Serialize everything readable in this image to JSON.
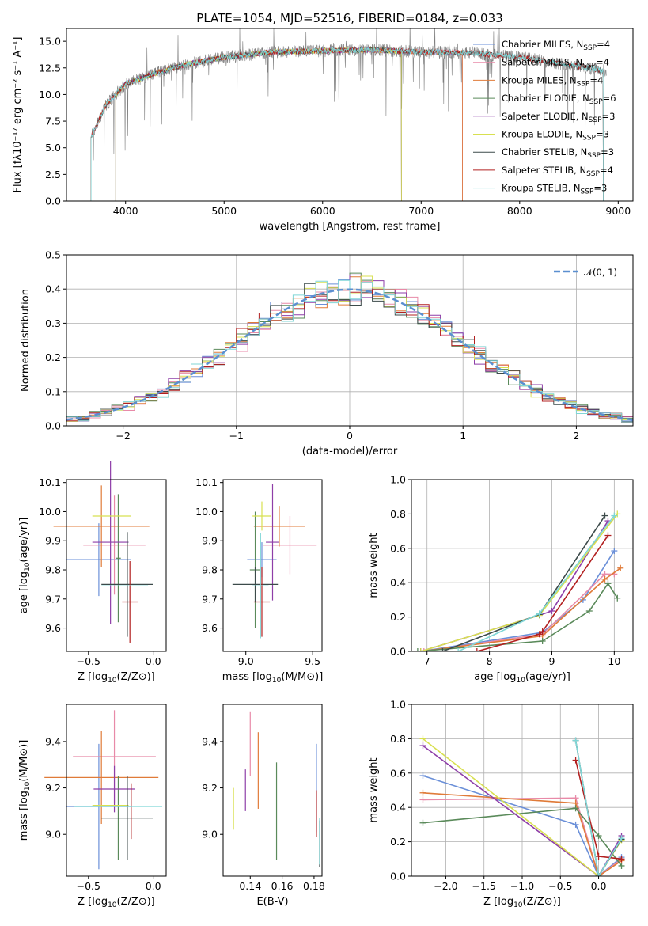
{
  "chart_data": [
    {
      "id": "spectrum",
      "type": "line",
      "title": "PLATE=1054, MJD=52516, FIBERID=0184, z=0.033",
      "xlabel": "wavelength [Angstrom, rest frame]",
      "ylabel": "Flux [fλ10⁻¹⁷ erg cm⁻² s⁻¹ A⁻¹]",
      "xlim": [
        3400,
        9150
      ],
      "ylim": [
        0,
        16.2
      ],
      "xticks": [
        4000,
        5000,
        6000,
        7000,
        8000,
        9000
      ],
      "yticks": [
        0.0,
        2.5,
        5.0,
        7.5,
        10.0,
        12.5,
        15.0
      ],
      "legend_position": "top-right",
      "data_series": {
        "name": "data",
        "color": "#808080",
        "x_range": [
          3650,
          8880
        ]
      },
      "continuum": {
        "x": [
          3650,
          3800,
          4000,
          4300,
          4600,
          5000,
          5500,
          6000,
          6500,
          7000,
          7500,
          8000,
          8500,
          8880
        ],
        "y": [
          6.0,
          9.0,
          11.0,
          12.0,
          12.8,
          13.5,
          14.0,
          14.1,
          14.2,
          14.0,
          13.9,
          13.5,
          12.8,
          12.2
        ]
      },
      "series": [
        {
          "name": "Chabrier MILES, N_SSP=4",
          "label_prefix": "Chabrier MILES, N",
          "label_sub": "SSP",
          "label_suffix": "=4",
          "color": "#6a8fd8",
          "x_range": [
            3650,
            7420
          ]
        },
        {
          "name": "Salpeter MILES, N_SSP=4",
          "label_prefix": "Salpeter MILES, N",
          "label_sub": "SSP",
          "label_suffix": "=4",
          "color": "#e88aa8",
          "x_range": [
            3650,
            7420
          ]
        },
        {
          "name": "Kroupa MILES, N_SSP=4",
          "label_prefix": "Kroupa MILES, N",
          "label_sub": "SSP",
          "label_suffix": "=4",
          "color": "#e07b39",
          "x_range": [
            3650,
            7420
          ]
        },
        {
          "name": "Chabrier ELODIE, N_SSP=6",
          "label_prefix": "Chabrier ELODIE, N",
          "label_sub": "SSP",
          "label_suffix": "=6",
          "color": "#5a8a5a",
          "x_range": [
            3900,
            6800
          ]
        },
        {
          "name": "Salpeter ELODIE, N_SSP=3",
          "label_prefix": "Salpeter ELODIE, N",
          "label_sub": "SSP",
          "label_suffix": "=3",
          "color": "#8e3ea8",
          "x_range": [
            3900,
            6800
          ]
        },
        {
          "name": "Kroupa ELODIE, N_SSP=3",
          "label_prefix": "Kroupa ELODIE, N",
          "label_sub": "SSP",
          "label_suffix": "=3",
          "color": "#d8e050",
          "x_range": [
            3900,
            6800
          ]
        },
        {
          "name": "Chabrier STELIB, N_SSP=3",
          "label_prefix": "Chabrier STELIB, N",
          "label_sub": "SSP",
          "label_suffix": "=3",
          "color": "#3c4a4a",
          "x_range": [
            3650,
            8850
          ]
        },
        {
          "name": "Salpeter STELIB, N_SSP=4",
          "label_prefix": "Salpeter STELIB, N",
          "label_sub": "SSP",
          "label_suffix": "=4",
          "color": "#b22020",
          "x_range": [
            3650,
            8850
          ]
        },
        {
          "name": "Kroupa STELIB, N_SSP=3",
          "label_prefix": "Kroupa STELIB, N",
          "label_sub": "SSP",
          "label_suffix": "=3",
          "color": "#7fd6d6",
          "x_range": [
            3650,
            8850
          ]
        }
      ]
    },
    {
      "id": "residuals",
      "type": "histogram",
      "xlabel": "(data-model)/error",
      "ylabel": "Normed distribution",
      "xlim": [
        -2.5,
        2.5
      ],
      "ylim": [
        0,
        0.5
      ],
      "xticks": [
        -2,
        -1,
        0,
        1,
        2
      ],
      "yticks": [
        0.0,
        0.1,
        0.2,
        0.3,
        0.4,
        0.5
      ],
      "bin_width": 0.1,
      "legend_position": "top-right",
      "reference_curve": {
        "label": "𝒩(0, 1)",
        "mean": 0,
        "sigma": 1,
        "color": "#5b8fd0",
        "dash": true
      }
    },
    {
      "id": "age-vs-Z",
      "type": "errorbar",
      "xlabel_prefix": "Z [log",
      "xlabel_sub": "10",
      "xlabel_suffix": "(Z/Z⊙)]",
      "ylabel_prefix": "age  [log",
      "ylabel_sub": "10",
      "ylabel_suffix": "(age/yr)]",
      "xlim": [
        -0.67,
        0.1
      ],
      "ylim": [
        9.52,
        10.11
      ],
      "xticks": [
        -0.5,
        0.0
      ],
      "yticks": [
        9.6,
        9.7,
        9.8,
        9.9,
        10.0,
        10.1
      ],
      "points": [
        {
          "x": -0.42,
          "xerr": 0.25,
          "y": 9.835,
          "yerr": 0.125,
          "color": "#6a8fd8"
        },
        {
          "x": -0.3,
          "xerr": 0.24,
          "y": 9.885,
          "yerr": 0.17,
          "color": "#e88aa8"
        },
        {
          "x": -0.4,
          "xerr": 0.37,
          "y": 9.95,
          "yerr": 0.14,
          "color": "#e07b39"
        },
        {
          "x": -0.27,
          "xerr": 0.02,
          "y": 9.84,
          "yerr": 0.22,
          "color": "#5a8a5a"
        },
        {
          "x": -0.33,
          "xerr": 0.14,
          "y": 9.895,
          "yerr": 0.28,
          "color": "#8e3ea8"
        },
        {
          "x": -0.32,
          "xerr": 0.15,
          "y": 9.985,
          "yerr": 0.0,
          "color": "#d8e050"
        },
        {
          "x": -0.2,
          "xerr": 0.2,
          "y": 9.75,
          "yerr": 0.18,
          "color": "#3c4a4a"
        },
        {
          "x": -0.18,
          "xerr": 0.06,
          "y": 9.69,
          "yerr": 0.14,
          "color": "#b22020"
        },
        {
          "x": -0.22,
          "xerr": 0.18,
          "y": 9.745,
          "yerr": 0.0,
          "color": "#7fd6d6"
        }
      ]
    },
    {
      "id": "age-vs-mass",
      "type": "errorbar",
      "xlabel_prefix": "mass [log",
      "xlabel_sub": "10",
      "xlabel_suffix": "(M/M⊙)]",
      "xlim": [
        8.83,
        9.57
      ],
      "ylim": [
        9.52,
        10.11
      ],
      "xticks": [
        9.0,
        9.5
      ],
      "yticks": [
        9.6,
        9.7,
        9.8,
        9.9,
        10.0,
        10.1
      ],
      "points": [
        {
          "x": 9.12,
          "xerr": 0.11,
          "y": 9.835,
          "yerr": 0.06,
          "color": "#6a8fd8"
        },
        {
          "x": 9.33,
          "xerr": 0.2,
          "y": 9.885,
          "yerr": 0.1,
          "color": "#e88aa8"
        },
        {
          "x": 9.25,
          "xerr": 0.19,
          "y": 9.95,
          "yerr": 0.07,
          "color": "#e07b39"
        },
        {
          "x": 9.07,
          "xerr": 0.04,
          "y": 9.8,
          "yerr": 0.2,
          "color": "#5a8a5a"
        },
        {
          "x": 9.2,
          "xerr": 0.05,
          "y": 9.895,
          "yerr": 0.2,
          "color": "#8e3ea8"
        },
        {
          "x": 9.12,
          "xerr": 0.07,
          "y": 9.985,
          "yerr": 0.05,
          "color": "#d8e050"
        },
        {
          "x": 9.07,
          "xerr": 0.17,
          "y": 9.75,
          "yerr": 0.06,
          "color": "#3c4a4a"
        },
        {
          "x": 9.12,
          "xerr": 0.06,
          "y": 9.69,
          "yerr": 0.12,
          "color": "#b22020"
        },
        {
          "x": 9.11,
          "xerr": 0.06,
          "y": 9.745,
          "yerr": 0.18,
          "color": "#7fd6d6"
        }
      ]
    },
    {
      "id": "weight-vs-age",
      "type": "line",
      "xlabel_prefix": "age  [log",
      "xlabel_sub": "10",
      "xlabel_suffix": "(age/yr)]",
      "ylabel": "mass weight",
      "xlim": [
        6.75,
        10.3
      ],
      "ylim": [
        0,
        1.0
      ],
      "xticks": [
        7,
        8,
        9,
        10
      ],
      "yticks": [
        0.0,
        0.2,
        0.4,
        0.6,
        0.8,
        1.0
      ],
      "series": [
        {
          "color": "#6a8fd8",
          "x": [
            6.9,
            8.85,
            9.5,
            10.0
          ],
          "y": [
            0.0,
            0.11,
            0.3,
            0.585
          ]
        },
        {
          "color": "#e88aa8",
          "x": [
            6.95,
            8.85,
            9.85,
            10.0
          ],
          "y": [
            0.0,
            0.1,
            0.45,
            0.45
          ]
        },
        {
          "color": "#e07b39",
          "x": [
            6.9,
            8.85,
            9.85,
            10.1
          ],
          "y": [
            0.0,
            0.09,
            0.42,
            0.485
          ]
        },
        {
          "color": "#5a8a5a",
          "x": [
            6.85,
            8.85,
            9.6,
            9.9,
            10.05
          ],
          "y": [
            0.0,
            0.06,
            0.235,
            0.395,
            0.31
          ]
        },
        {
          "color": "#8e3ea8",
          "x": [
            6.9,
            8.8,
            9.0,
            9.9
          ],
          "y": [
            0.0,
            0.21,
            0.235,
            0.76
          ]
        },
        {
          "color": "#d8e050",
          "x": [
            6.9,
            8.8,
            10.05
          ],
          "y": [
            0.0,
            0.21,
            0.8
          ]
        },
        {
          "color": "#3c4a4a",
          "x": [
            7.25,
            8.8,
            9.85
          ],
          "y": [
            0.0,
            0.215,
            0.79
          ]
        },
        {
          "color": "#b22020",
          "x": [
            7.8,
            8.8,
            8.85,
            9.9
          ],
          "y": [
            0.0,
            0.1,
            0.115,
            0.675
          ]
        },
        {
          "color": "#7fd6d6",
          "x": [
            7.5,
            8.8,
            10.0
          ],
          "y": [
            0.0,
            0.22,
            0.79
          ]
        }
      ]
    },
    {
      "id": "mass-vs-Z",
      "type": "errorbar",
      "xlabel_prefix": "Z [log",
      "xlabel_sub": "10",
      "xlabel_suffix": "(Z/Z⊙)]",
      "ylabel_prefix": "mass [log",
      "ylabel_sub": "10",
      "ylabel_suffix": "(M/M⊙)]",
      "xlim": [
        -0.67,
        0.1
      ],
      "ylim": [
        8.82,
        9.56
      ],
      "xticks": [
        -0.5,
        0.0
      ],
      "yticks": [
        9.0,
        9.2,
        9.4
      ],
      "points": [
        {
          "x": -0.42,
          "xerr": 0.25,
          "y": 9.12,
          "yerr": 0.27,
          "color": "#6a8fd8"
        },
        {
          "x": -0.3,
          "xerr": 0.32,
          "y": 9.335,
          "yerr": 0.2,
          "color": "#e88aa8"
        },
        {
          "x": -0.4,
          "xerr": 0.44,
          "y": 9.245,
          "yerr": 0.2,
          "color": "#e07b39"
        },
        {
          "x": -0.27,
          "xerr": 0.0,
          "y": 9.07,
          "yerr": 0.18,
          "color": "#5a8a5a"
        },
        {
          "x": -0.3,
          "xerr": 0.16,
          "y": 9.195,
          "yerr": 0.1,
          "color": "#8e3ea8"
        },
        {
          "x": -0.33,
          "xerr": 0.14,
          "y": 9.125,
          "yerr": 0.0,
          "color": "#d8e050"
        },
        {
          "x": -0.2,
          "xerr": 0.2,
          "y": 9.07,
          "yerr": 0.18,
          "color": "#3c4a4a"
        },
        {
          "x": -0.17,
          "xerr": 0.0,
          "y": 9.1,
          "yerr": 0.12,
          "color": "#b22020"
        },
        {
          "x": -0.27,
          "xerr": 0.34,
          "y": 9.12,
          "yerr": 0.0,
          "color": "#7fd6d6"
        }
      ]
    },
    {
      "id": "mass-vs-EBV",
      "type": "errorbar",
      "xlabel": "E(B-V)",
      "xlim": [
        0.123,
        0.185
      ],
      "ylim": [
        8.82,
        9.56
      ],
      "xticks": [
        0.14,
        0.16,
        0.18
      ],
      "yticks": [
        9.0,
        9.2,
        9.4
      ],
      "points": [
        {
          "x": 0.1815,
          "xerr": 0.0,
          "y": 9.2,
          "yerr": 0.19,
          "color": "#6a8fd8"
        },
        {
          "x": 0.14,
          "xerr": 0.0,
          "y": 9.39,
          "yerr": 0.14,
          "color": "#e88aa8"
        },
        {
          "x": 0.145,
          "xerr": 0.0,
          "y": 9.275,
          "yerr": 0.165,
          "color": "#e07b39"
        },
        {
          "x": 0.1565,
          "xerr": 0.0,
          "y": 9.1,
          "yerr": 0.21,
          "color": "#5a8a5a"
        },
        {
          "x": 0.137,
          "xerr": 0.0,
          "y": 9.19,
          "yerr": 0.09,
          "color": "#8e3ea8"
        },
        {
          "x": 0.1295,
          "xerr": 0.0,
          "y": 9.11,
          "yerr": 0.09,
          "color": "#d8e050"
        },
        {
          "x": 0.1835,
          "xerr": 0.0,
          "y": 8.96,
          "yerr": 0.1,
          "color": "#3c4a4a"
        },
        {
          "x": 0.1815,
          "xerr": 0.0,
          "y": 9.09,
          "yerr": 0.1,
          "color": "#b22020"
        },
        {
          "x": 0.1835,
          "xerr": 0.0,
          "y": 8.97,
          "yerr": 0.1,
          "color": "#7fd6d6"
        }
      ]
    },
    {
      "id": "weight-vs-Z",
      "type": "line",
      "xlabel_prefix": "Z [log",
      "xlabel_sub": "10",
      "xlabel_suffix": "(Z/Z⊙)]",
      "ylabel": "mass weight",
      "xlim": [
        -2.45,
        0.45
      ],
      "ylim": [
        0,
        1.0
      ],
      "xticks": [
        -2.0,
        -1.5,
        -1.0,
        -0.5,
        0.0
      ],
      "yticks": [
        0.0,
        0.2,
        0.4,
        0.6,
        0.8,
        1.0
      ],
      "series": [
        {
          "color": "#6a8fd8",
          "x": [
            -2.3,
            -0.3,
            0.0,
            0.3
          ],
          "y": [
            0.585,
            0.3,
            0.0,
            0.11
          ]
        },
        {
          "color": "#e88aa8",
          "x": [
            -2.3,
            -0.3,
            0.0,
            0.3
          ],
          "y": [
            0.445,
            0.455,
            0.0,
            0.1
          ]
        },
        {
          "color": "#e07b39",
          "x": [
            -2.3,
            -0.3,
            0.0,
            0.3
          ],
          "y": [
            0.485,
            0.425,
            0.0,
            0.09
          ]
        },
        {
          "color": "#5a8a5a",
          "x": [
            -2.3,
            -0.3,
            0.0,
            0.3
          ],
          "y": [
            0.31,
            0.395,
            0.235,
            0.06
          ]
        },
        {
          "color": "#8e3ea8",
          "x": [
            -2.3,
            0.0,
            0.3
          ],
          "y": [
            0.76,
            0.0,
            0.235
          ]
        },
        {
          "color": "#d8e050",
          "x": [
            -2.3,
            0.0,
            0.3
          ],
          "y": [
            0.8,
            0.0,
            0.21
          ]
        },
        {
          "color": "#3c4a4a",
          "x": [
            -0.3,
            0.0,
            0.3
          ],
          "y": [
            0.79,
            0.0,
            0.215
          ]
        },
        {
          "color": "#b22020",
          "x": [
            -0.3,
            0.0,
            0.3
          ],
          "y": [
            0.675,
            0.115,
            0.1
          ]
        },
        {
          "color": "#7fd6d6",
          "x": [
            -0.3,
            0.0,
            0.3
          ],
          "y": [
            0.79,
            0.0,
            0.22
          ]
        }
      ]
    }
  ]
}
